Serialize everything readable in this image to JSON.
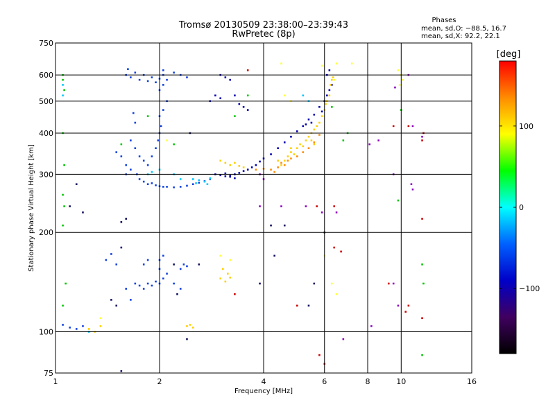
{
  "chart_data": {
    "type": "scatter",
    "title": "Tromsø 20130509 23:38:00–23:39:43",
    "subtitle": "RwPretec (8p)",
    "xlabel": "Frequency [MHz]",
    "ylabel": "Stationary phase Virtual Height [km]",
    "x_scale": "log",
    "y_scale": "log",
    "xlim": [
      1,
      16
    ],
    "ylim": [
      75,
      750
    ],
    "x_ticks": [
      1,
      2,
      4,
      6,
      8,
      10,
      16
    ],
    "x_tick_labels": [
      "1",
      "2",
      "4",
      "6",
      "8",
      "10",
      "16"
    ],
    "y_ticks": [
      75,
      100,
      200,
      300,
      400,
      500,
      600,
      750
    ],
    "y_tick_labels": [
      "75",
      "100",
      "200",
      "300",
      "400",
      "500",
      "600",
      "750"
    ],
    "grid": true,
    "phases_box": {
      "heading": "Phases",
      "line_o": "mean, sd,O: −88.5, 16.7",
      "line_x": "mean, sd,X:  92.2, 22.1"
    },
    "colorbar": {
      "label": "[deg]",
      "range": [
        -180,
        180
      ],
      "ticks": [
        100,
        0,
        -100
      ],
      "tick_labels": [
        "100",
        "0",
        "−100"
      ],
      "colors": [
        "#ff0000",
        "#ff8c00",
        "#ffff00",
        "#00ff00",
        "#00ffff",
        "#0060ff",
        "#0000c8",
        "#400060",
        "#000000"
      ]
    },
    "series": [
      {
        "color": "#1040e0",
        "points": [
          [
            1.6,
            600
          ],
          [
            1.65,
            590
          ],
          [
            1.7,
            610
          ],
          [
            1.75,
            580
          ],
          [
            1.8,
            600
          ],
          [
            1.85,
            575
          ],
          [
            1.9,
            590
          ],
          [
            1.95,
            570
          ],
          [
            2.0,
            585
          ],
          [
            2.05,
            600
          ],
          [
            2.1,
            580
          ],
          [
            1.62,
            625
          ],
          [
            2.05,
            620
          ],
          [
            2.2,
            610
          ],
          [
            2.3,
            600
          ],
          [
            2.4,
            590
          ],
          [
            1.65,
            380
          ],
          [
            1.7,
            360
          ],
          [
            1.75,
            340
          ],
          [
            1.8,
            330
          ],
          [
            1.85,
            320
          ],
          [
            1.9,
            340
          ],
          [
            1.95,
            360
          ],
          [
            1.72,
            300
          ],
          [
            1.75,
            290
          ],
          [
            1.8,
            285
          ],
          [
            1.85,
            280
          ],
          [
            1.9,
            282
          ],
          [
            1.95,
            278
          ],
          [
            2.0,
            276
          ],
          [
            2.05,
            275
          ],
          [
            2.1,
            275
          ],
          [
            2.2,
            274
          ],
          [
            2.3,
            275
          ],
          [
            2.4,
            277
          ],
          [
            2.5,
            280
          ],
          [
            2.6,
            283
          ],
          [
            2.7,
            286
          ],
          [
            2.8,
            290
          ],
          [
            1.55,
            340
          ],
          [
            1.5,
            350
          ],
          [
            1.6,
            320
          ],
          [
            1.6,
            300
          ],
          [
            1.65,
            310
          ],
          [
            2.0,
            450
          ],
          [
            2.05,
            470
          ],
          [
            2.1,
            500
          ],
          [
            2.02,
            420
          ],
          [
            2.0,
            400
          ],
          [
            1.98,
            380
          ],
          [
            1.7,
            430
          ],
          [
            1.68,
            460
          ],
          [
            2.0,
            540
          ],
          [
            2.05,
            560
          ],
          [
            1.7,
            140
          ],
          [
            1.75,
            138
          ],
          [
            1.8,
            135
          ],
          [
            1.85,
            140
          ],
          [
            1.9,
            138
          ],
          [
            1.95,
            142
          ],
          [
            2.0,
            140
          ],
          [
            2.05,
            145
          ],
          [
            2.1,
            150
          ],
          [
            1.8,
            160
          ],
          [
            1.85,
            165
          ],
          [
            2.0,
            165
          ],
          [
            2.05,
            170
          ],
          [
            2.0,
            155
          ],
          [
            1.6,
            135
          ],
          [
            1.65,
            125
          ],
          [
            2.3,
            155
          ],
          [
            2.35,
            160
          ],
          [
            2.4,
            158
          ],
          [
            1.05,
            105
          ],
          [
            1.1,
            103
          ],
          [
            1.15,
            102
          ],
          [
            1.2,
            104
          ],
          [
            1.45,
            172
          ],
          [
            1.4,
            165
          ],
          [
            1.5,
            160
          ],
          [
            2.2,
            140
          ],
          [
            2.3,
            135
          ]
        ]
      },
      {
        "color": "#0000b0",
        "points": [
          [
            2.9,
            300
          ],
          [
            3.0,
            298
          ],
          [
            3.1,
            296
          ],
          [
            3.2,
            297
          ],
          [
            3.3,
            300
          ],
          [
            3.4,
            303
          ],
          [
            3.5,
            307
          ],
          [
            3.2,
            295
          ],
          [
            3.3,
            292
          ],
          [
            3.1,
            302
          ],
          [
            3.6,
            310
          ],
          [
            3.7,
            315
          ],
          [
            3.8,
            320
          ],
          [
            3.9,
            328
          ],
          [
            4.0,
            335
          ],
          [
            4.2,
            345
          ],
          [
            4.4,
            360
          ],
          [
            4.6,
            375
          ],
          [
            4.8,
            390
          ],
          [
            5.0,
            405
          ],
          [
            5.2,
            420
          ],
          [
            5.4,
            440
          ],
          [
            5.6,
            455
          ],
          [
            5.8,
            480
          ],
          [
            6.0,
            500
          ],
          [
            6.1,
            520
          ],
          [
            6.2,
            540
          ],
          [
            6.3,
            560
          ],
          [
            6.1,
            600
          ],
          [
            6.2,
            620
          ],
          [
            5.9,
            465
          ],
          [
            5.5,
            430
          ],
          [
            5.3,
            425
          ],
          [
            3.0,
            600
          ],
          [
            3.1,
            590
          ],
          [
            3.2,
            580
          ],
          [
            3.3,
            520
          ],
          [
            3.4,
            490
          ],
          [
            3.5,
            480
          ],
          [
            3.6,
            470
          ],
          [
            3.0,
            510
          ],
          [
            2.9,
            520
          ],
          [
            2.8,
            500
          ]
        ]
      },
      {
        "color": "#ffd000",
        "points": [
          [
            3.0,
            330
          ],
          [
            3.1,
            325
          ],
          [
            3.2,
            320
          ],
          [
            3.3,
            325
          ],
          [
            3.4,
            318
          ],
          [
            3.5,
            315
          ],
          [
            3.0,
            145
          ],
          [
            3.1,
            142
          ],
          [
            3.2,
            146
          ],
          [
            3.15,
            150
          ],
          [
            3.05,
            155
          ],
          [
            4.6,
            330
          ],
          [
            4.7,
            340
          ],
          [
            4.8,
            350
          ],
          [
            4.9,
            345
          ],
          [
            5.0,
            360
          ],
          [
            5.1,
            370
          ],
          [
            5.2,
            365
          ],
          [
            5.3,
            380
          ],
          [
            5.4,
            390
          ],
          [
            5.5,
            400
          ],
          [
            5.6,
            410
          ],
          [
            5.7,
            420
          ],
          [
            5.5,
            380
          ],
          [
            5.6,
            370
          ],
          [
            5.8,
            430
          ],
          [
            5.9,
            450
          ],
          [
            6.0,
            470
          ],
          [
            6.05,
            490
          ],
          [
            6.1,
            500
          ],
          [
            6.2,
            520
          ],
          [
            6.25,
            560
          ],
          [
            6.3,
            580
          ],
          [
            6.35,
            590
          ],
          [
            4.4,
            330
          ],
          [
            4.5,
            320
          ],
          [
            4.8,
            360
          ],
          [
            1.3,
            100
          ],
          [
            1.25,
            102
          ],
          [
            1.35,
            104
          ],
          [
            2.4,
            104
          ],
          [
            2.5,
            103
          ],
          [
            2.45,
            105
          ]
        ]
      },
      {
        "color": "#ff8c00",
        "points": [
          [
            4.2,
            310
          ],
          [
            4.3,
            305
          ],
          [
            4.4,
            315
          ],
          [
            4.5,
            325
          ],
          [
            4.6,
            320
          ],
          [
            4.7,
            330
          ],
          [
            4.8,
            335
          ],
          [
            5.0,
            340
          ],
          [
            5.2,
            350
          ],
          [
            5.4,
            360
          ],
          [
            5.6,
            375
          ],
          [
            5.8,
            395
          ],
          [
            3.8,
            310
          ],
          [
            4.0,
            312
          ]
        ]
      },
      {
        "color": "#00c8ff",
        "points": [
          [
            1.05,
            560
          ],
          [
            1.05,
            520
          ],
          [
            2.5,
            290
          ],
          [
            2.6,
            288
          ],
          [
            2.7,
            285
          ],
          [
            2.8,
            292
          ],
          [
            2.55,
            282
          ],
          [
            2.75,
            280
          ],
          [
            1.85,
            300
          ],
          [
            1.9,
            305
          ],
          [
            2.0,
            310
          ],
          [
            5.2,
            520
          ],
          [
            5.4,
            500
          ],
          [
            1.25,
            100
          ],
          [
            2.2,
            300
          ],
          [
            2.3,
            290
          ]
        ]
      },
      {
        "color": "#00c800",
        "points": [
          [
            1.05,
            600
          ],
          [
            1.05,
            580
          ],
          [
            1.06,
            540
          ],
          [
            1.05,
            400
          ],
          [
            1.06,
            320
          ],
          [
            1.05,
            260
          ],
          [
            1.06,
            240
          ],
          [
            1.05,
            210
          ],
          [
            1.05,
            120
          ],
          [
            1.07,
            140
          ],
          [
            11.5,
            160
          ],
          [
            11.6,
            140
          ],
          [
            11.5,
            85
          ],
          [
            10.0,
            470
          ],
          [
            9.8,
            250
          ],
          [
            6.3,
            480
          ],
          [
            7.0,
            400
          ],
          [
            6.8,
            380
          ],
          [
            1.85,
            450
          ],
          [
            1.55,
            370
          ],
          [
            2.2,
            370
          ],
          [
            3.3,
            450
          ],
          [
            3.6,
            520
          ]
        ]
      },
      {
        "color": "#ffff40",
        "points": [
          [
            6.5,
            650
          ],
          [
            7.2,
            650
          ],
          [
            4.5,
            650
          ],
          [
            9.8,
            620
          ],
          [
            10.0,
            600
          ],
          [
            10.1,
            580
          ],
          [
            9.9,
            560
          ],
          [
            4.6,
            520
          ],
          [
            4.8,
            500
          ],
          [
            6.4,
            580
          ],
          [
            5.9,
            640
          ],
          [
            3.0,
            170
          ],
          [
            3.2,
            165
          ],
          [
            6.0,
            170
          ],
          [
            6.3,
            140
          ],
          [
            6.5,
            130
          ],
          [
            1.35,
            110
          ],
          [
            2.1,
            380
          ]
        ]
      },
      {
        "color": "#d00000",
        "points": [
          [
            11.5,
            380
          ],
          [
            11.6,
            400
          ],
          [
            10.5,
            420
          ],
          [
            9.5,
            420
          ],
          [
            3.6,
            620
          ],
          [
            6.4,
            240
          ],
          [
            5.7,
            240
          ],
          [
            6.4,
            180
          ],
          [
            6.7,
            175
          ],
          [
            9.2,
            140
          ],
          [
            10.3,
            115
          ],
          [
            11.5,
            110
          ],
          [
            10.5,
            120
          ],
          [
            5.8,
            85
          ],
          [
            6.0,
            80
          ],
          [
            5.0,
            120
          ],
          [
            11.5,
            220
          ],
          [
            3.3,
            130
          ]
        ]
      },
      {
        "color": "#9000c0",
        "points": [
          [
            10.7,
            280
          ],
          [
            10.8,
            270
          ],
          [
            10.8,
            420
          ],
          [
            11.5,
            390
          ],
          [
            9.5,
            300
          ],
          [
            8.6,
            380
          ],
          [
            8.1,
            370
          ],
          [
            6.5,
            230
          ],
          [
            5.9,
            230
          ],
          [
            5.3,
            240
          ],
          [
            3.9,
            240
          ],
          [
            4.5,
            240
          ],
          [
            4.0,
            290
          ],
          [
            3.9,
            300
          ],
          [
            9.8,
            120
          ],
          [
            8.2,
            104
          ],
          [
            6.8,
            95
          ],
          [
            9.6,
            550
          ],
          [
            10.5,
            600
          ],
          [
            9.5,
            140
          ]
        ]
      },
      {
        "color": "#101060",
        "points": [
          [
            1.1,
            240
          ],
          [
            1.15,
            280
          ],
          [
            1.2,
            230
          ],
          [
            1.55,
            180
          ],
          [
            1.6,
            220
          ],
          [
            1.55,
            215
          ],
          [
            1.5,
            120
          ],
          [
            1.45,
            125
          ],
          [
            2.2,
            160
          ],
          [
            2.25,
            130
          ],
          [
            2.4,
            95
          ],
          [
            2.6,
            160
          ],
          [
            3.9,
            140
          ],
          [
            4.3,
            170
          ],
          [
            4.6,
            210
          ],
          [
            5.4,
            120
          ],
          [
            5.6,
            140
          ],
          [
            6.0,
            200
          ],
          [
            1.55,
            76
          ],
          [
            2.45,
            400
          ],
          [
            4.2,
            210
          ]
        ]
      }
    ]
  }
}
